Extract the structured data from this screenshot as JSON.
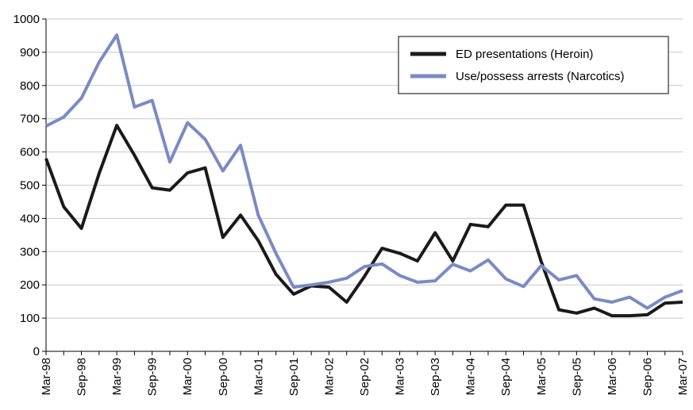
{
  "chart_data": {
    "type": "line",
    "categories": [
      "Mar-98",
      null,
      "Sep-98",
      null,
      "Mar-99",
      null,
      "Sep-99",
      null,
      "Mar-00",
      null,
      "Sep-00",
      null,
      "Mar-01",
      null,
      "Sep-01",
      null,
      "Mar-02",
      null,
      "Sep-02",
      null,
      "Mar-03",
      null,
      "Sep-03",
      null,
      "Mar-04",
      null,
      "Sep-04",
      null,
      "Mar-05",
      null,
      "Sep-05",
      null,
      "Mar-06",
      null,
      "Sep-06",
      null,
      "Mar-07"
    ],
    "series": [
      {
        "name": "ED presentations (Heroin)",
        "color": "#1a1a1a",
        "values": [
          580,
          435,
          370,
          535,
          680,
          590,
          492,
          485,
          537,
          552,
          343,
          410,
          333,
          232,
          172,
          197,
          193,
          148,
          225,
          310,
          295,
          272,
          357,
          272,
          382,
          375,
          440,
          440,
          270,
          125,
          115,
          130,
          107,
          107,
          110,
          145,
          148
        ]
      },
      {
        "name": "Use/possess arrests (Narcotics)",
        "color": "#7b8ac4",
        "values": [
          678,
          705,
          762,
          870,
          952,
          735,
          755,
          570,
          688,
          638,
          543,
          620,
          410,
          295,
          193,
          200,
          208,
          220,
          255,
          263,
          228,
          208,
          212,
          262,
          242,
          275,
          218,
          195,
          258,
          215,
          228,
          158,
          148,
          163,
          130,
          163,
          183
        ]
      }
    ],
    "ylim": [
      0,
      1000
    ],
    "yticks": [
      0,
      100,
      200,
      300,
      400,
      500,
      600,
      700,
      800,
      900,
      1000
    ],
    "grid": true,
    "legend": "top-right"
  }
}
